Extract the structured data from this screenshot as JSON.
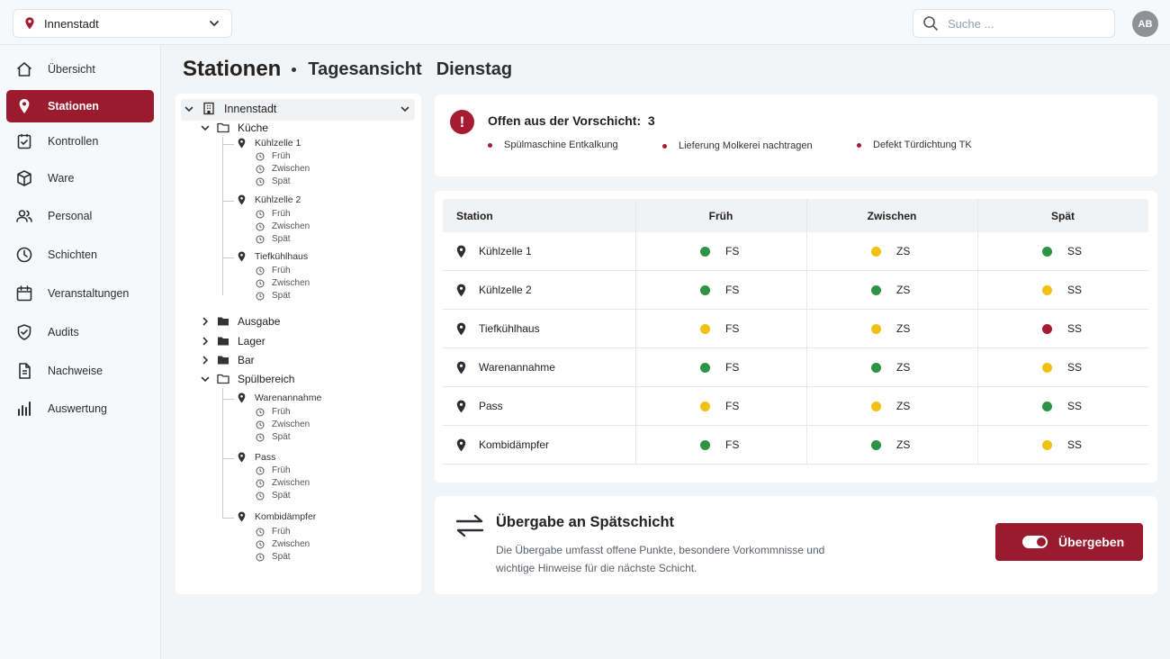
{
  "topbar": {
    "location": "Innenstadt",
    "search_placeholder": "Suche ...",
    "avatar": "AB"
  },
  "sidebar": {
    "items": [
      {
        "label": "Übersicht",
        "icon": "home-icon",
        "active": false
      },
      {
        "label": "Stationen",
        "icon": "location-pin-icon",
        "active": true
      },
      {
        "label": "Kontrollen",
        "icon": "clipboard-check-icon",
        "active": false
      },
      {
        "label": "Ware",
        "icon": "box-icon",
        "active": false
      },
      {
        "label": "Personal",
        "icon": "users-icon",
        "active": false
      },
      {
        "label": "Schichten",
        "icon": "clock-icon",
        "active": false
      },
      {
        "label": "Veranstaltungen",
        "icon": "calendar-icon",
        "active": false
      },
      {
        "label": "Audits",
        "icon": "shield-check-icon",
        "active": false
      },
      {
        "label": "Nachweise",
        "icon": "document-icon",
        "active": false
      },
      {
        "label": "Auswertung",
        "icon": "bar-chart-icon",
        "active": false
      }
    ]
  },
  "heading": {
    "title": "Stationen",
    "view": "Tagesansicht",
    "day": "Dienstag"
  },
  "tree": {
    "root": "Innenstadt",
    "groups": [
      {
        "label": "Küche",
        "expanded": true,
        "stations": [
          {
            "label": "Kühlzelle 1",
            "shifts": [
              "Früh",
              "Zwischen",
              "Spät"
            ]
          },
          {
            "label": "Kühlzelle 2",
            "shifts": [
              "Früh",
              "Zwischen",
              "Spät"
            ]
          },
          {
            "label": "Tiefkühlhaus",
            "shifts": [
              "Früh",
              "Zwischen",
              "Spät"
            ]
          }
        ]
      },
      {
        "label": "Ausgabe",
        "expanded": false,
        "stations": []
      },
      {
        "label": "Lager",
        "expanded": false,
        "stations": []
      },
      {
        "label": "Bar",
        "expanded": false,
        "stations": []
      },
      {
        "label": "Spülbereich",
        "expanded": true,
        "stations": [
          {
            "label": "Warenannahme",
            "shifts": [
              "Früh",
              "Zwischen",
              "Spät"
            ]
          },
          {
            "label": "Pass",
            "shifts": [
              "Früh",
              "Zwischen",
              "Spät"
            ]
          },
          {
            "label": "Kombidämpfer",
            "shifts": [
              "Früh",
              "Zwischen",
              "Spät"
            ]
          }
        ]
      }
    ]
  },
  "alert": {
    "icon_text": "!",
    "title": "Offen aus der Vorschicht:",
    "count": "3",
    "items": [
      "Spülmaschine Entkalkung",
      "Lieferung Molkerei nachtragen",
      "Defekt Türdichtung TK"
    ]
  },
  "table": {
    "headers": [
      "Station",
      "Früh",
      "Zwischen",
      "Spät"
    ],
    "rows": [
      {
        "station": "Kühlzelle 1",
        "frueh": {
          "code": "FS",
          "status": "g"
        },
        "zwischen": {
          "code": "ZS",
          "status": "y"
        },
        "spaet": {
          "code": "SS",
          "status": "g"
        }
      },
      {
        "station": "Kühlzelle 2",
        "frueh": {
          "code": "FS",
          "status": "g"
        },
        "zwischen": {
          "code": "ZS",
          "status": "g"
        },
        "spaet": {
          "code": "SS",
          "status": "y"
        }
      },
      {
        "station": "Tiefkühlhaus",
        "frueh": {
          "code": "FS",
          "status": "y"
        },
        "zwischen": {
          "code": "ZS",
          "status": "y"
        },
        "spaet": {
          "code": "SS",
          "status": "r"
        }
      },
      {
        "station": "Warenannahme",
        "frueh": {
          "code": "FS",
          "status": "g"
        },
        "zwischen": {
          "code": "ZS",
          "status": "g"
        },
        "spaet": {
          "code": "SS",
          "status": "y"
        }
      },
      {
        "station": "Pass",
        "frueh": {
          "code": "FS",
          "status": "y"
        },
        "zwischen": {
          "code": "ZS",
          "status": "y"
        },
        "spaet": {
          "code": "SS",
          "status": "g"
        }
      },
      {
        "station": "Kombidämpfer",
        "frueh": {
          "code": "FS",
          "status": "g"
        },
        "zwischen": {
          "code": "ZS",
          "status": "g"
        },
        "spaet": {
          "code": "SS",
          "status": "y"
        }
      }
    ],
    "status_colors": {
      "g": "#2e9344",
      "y": "#f2c012",
      "r": "#a51c30"
    }
  },
  "handover": {
    "title": "Übergabe an Spätschicht",
    "description": "Die Übergabe umfasst offene Punkte, besondere Vorkommnisse und wichtige Hinweise für die nächste Schicht.",
    "button": "Übergeben"
  },
  "colors": {
    "accent": "#9b1b2e"
  }
}
